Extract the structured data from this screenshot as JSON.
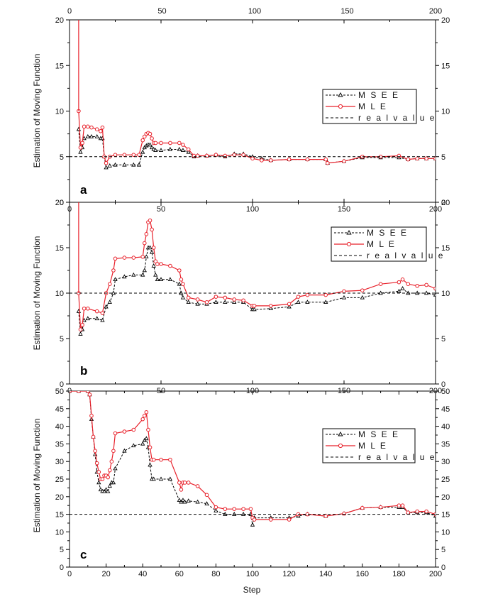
{
  "figure": {
    "x_axis_label": "Step",
    "y_axis_label": "Estimation of Moving Function",
    "x_ticks_top": [
      "0",
      "50",
      "100",
      "150",
      "200"
    ]
  },
  "colors": {
    "msee": "#000000",
    "mle": "#e8202a",
    "real": "#000000"
  },
  "chart_data": [
    {
      "type": "line",
      "panel_label": "a",
      "xlabel": "",
      "ylabel": "Estimation of Moving Function",
      "xlim": [
        0,
        200
      ],
      "ylim": [
        0,
        20
      ],
      "y_ticks": [
        "0",
        "5",
        "10",
        "15",
        "20"
      ],
      "y_ticks_right": [
        "0",
        "5",
        "10",
        "15",
        "20"
      ],
      "x_ticks": [
        "0",
        "50",
        "100",
        "150",
        "200"
      ],
      "legend_position": "right",
      "legend": [
        "M S E E",
        "M L E",
        "r e a l  v a l u e"
      ],
      "series": [
        {
          "name": "M S E E",
          "style": "dash-dot-triangle",
          "x": [
            5,
            6,
            7,
            8,
            10,
            12,
            15,
            17,
            18,
            19,
            20,
            22,
            25,
            30,
            35,
            38,
            40,
            41,
            42,
            43,
            44,
            45,
            46,
            47,
            50,
            55,
            60,
            62,
            65,
            68,
            70,
            75,
            80,
            85,
            90,
            95,
            100,
            105,
            110,
            120,
            130,
            140,
            141,
            150,
            160,
            170,
            180,
            185,
            190,
            195,
            200
          ],
          "y": [
            8.0,
            5.5,
            6.0,
            7.0,
            7.2,
            7.2,
            7.2,
            7.0,
            7.0,
            5.0,
            3.8,
            4.0,
            4.1,
            4.1,
            4.1,
            4.1,
            5.5,
            6.0,
            6.2,
            6.3,
            6.3,
            6.0,
            5.8,
            5.7,
            5.7,
            5.8,
            5.8,
            5.7,
            5.5,
            5.0,
            5.1,
            5.1,
            5.2,
            5.0,
            5.3,
            5.3,
            5.0,
            4.8,
            4.6,
            4.7,
            4.7,
            4.7,
            4.3,
            4.5,
            4.9,
            4.9,
            4.9,
            4.7,
            4.8,
            4.8,
            4.8
          ]
        },
        {
          "name": "M L E",
          "style": "solid-circle",
          "x": [
            5,
            6,
            7,
            8,
            10,
            12,
            15,
            17,
            18,
            19,
            20,
            22,
            25,
            30,
            35,
            38,
            40,
            41,
            42,
            43,
            44,
            45,
            46,
            47,
            50,
            55,
            60,
            62,
            65,
            68,
            70,
            75,
            80,
            85,
            90,
            95,
            100,
            105,
            110,
            120,
            130,
            140,
            141,
            150,
            160,
            170,
            180,
            185,
            190,
            195,
            200
          ],
          "y": [
            10.0,
            6.0,
            6.5,
            8.3,
            8.3,
            8.2,
            8.0,
            7.8,
            8.2,
            5.0,
            4.3,
            5.0,
            5.2,
            5.2,
            5.2,
            5.2,
            6.8,
            7.2,
            7.5,
            7.6,
            7.5,
            7.0,
            6.5,
            6.5,
            6.5,
            6.5,
            6.5,
            6.3,
            5.8,
            5.1,
            5.1,
            5.1,
            5.2,
            5.1,
            5.2,
            5.2,
            4.8,
            4.6,
            4.6,
            4.7,
            4.7,
            4.7,
            4.3,
            4.5,
            5.0,
            5.0,
            5.1,
            4.7,
            4.8,
            4.8,
            4.8
          ]
        },
        {
          "name": "r e a l  v a l u e",
          "style": "dashed",
          "x": [
            0,
            200
          ],
          "y": [
            5,
            5
          ]
        }
      ]
    },
    {
      "type": "line",
      "panel_label": "b",
      "xlabel": "",
      "ylabel": "Estimation of Moving Function",
      "xlim": [
        0,
        200
      ],
      "ylim": [
        0,
        20
      ],
      "y_ticks": [
        "0",
        "5",
        "10",
        "15",
        "20"
      ],
      "y_ticks_right": [
        "0",
        "5",
        "10",
        "15",
        "20"
      ],
      "x_ticks": [
        "0",
        "50",
        "100",
        "150",
        "200"
      ],
      "legend_position": "top-right",
      "legend": [
        "M S E E",
        "M L E",
        "r e a l  v a l u e"
      ],
      "series": [
        {
          "name": "M S E E",
          "style": "dash-dot-triangle",
          "x": [
            5,
            6,
            7,
            8,
            10,
            15,
            18,
            20,
            22,
            24,
            25,
            30,
            35,
            40,
            41,
            42,
            43,
            44,
            45,
            46,
            47,
            48,
            50,
            55,
            60,
            61,
            62,
            65,
            70,
            75,
            80,
            85,
            90,
            95,
            100,
            101,
            110,
            120,
            125,
            130,
            140,
            150,
            160,
            170,
            180,
            182,
            185,
            190,
            195,
            200
          ],
          "y": [
            8.0,
            5.5,
            6.0,
            7.0,
            7.2,
            7.2,
            7.0,
            8.5,
            9.0,
            10.0,
            11.5,
            11.8,
            12.0,
            12.0,
            12.5,
            14.0,
            15.0,
            15.0,
            14.5,
            13.0,
            12.0,
            11.5,
            11.5,
            11.5,
            11.0,
            10.0,
            9.5,
            9.0,
            8.8,
            8.8,
            9.0,
            9.0,
            9.0,
            9.0,
            8.2,
            8.2,
            8.3,
            8.5,
            9.0,
            9.0,
            9.0,
            9.5,
            9.5,
            10.0,
            10.2,
            10.5,
            10.0,
            10.0,
            10.0,
            9.8
          ]
        },
        {
          "name": "M L E",
          "style": "solid-circle",
          "x": [
            5,
            6,
            7,
            8,
            10,
            15,
            18,
            20,
            22,
            24,
            25,
            30,
            35,
            40,
            41,
            42,
            43,
            44,
            45,
            46,
            47,
            48,
            50,
            55,
            60,
            61,
            62,
            65,
            70,
            75,
            80,
            85,
            90,
            95,
            100,
            101,
            110,
            120,
            125,
            130,
            140,
            150,
            160,
            170,
            180,
            182,
            185,
            190,
            195,
            200
          ],
          "y": [
            10.0,
            6.0,
            6.5,
            8.3,
            8.3,
            8.0,
            7.8,
            10.0,
            11.0,
            12.5,
            13.8,
            13.9,
            13.9,
            14.0,
            15.5,
            16.5,
            17.8,
            18.0,
            17.0,
            15.0,
            13.5,
            13.2,
            13.2,
            13.0,
            12.5,
            11.5,
            11.0,
            9.5,
            9.3,
            9.0,
            9.6,
            9.5,
            9.3,
            9.2,
            8.6,
            8.6,
            8.6,
            8.8,
            9.6,
            9.8,
            9.8,
            10.2,
            10.3,
            11.0,
            11.2,
            11.5,
            11.0,
            10.8,
            10.9,
            10.5
          ]
        },
        {
          "name": "r e a l  v a l u e",
          "style": "dashed",
          "x": [
            0,
            200
          ],
          "y": [
            10,
            10
          ]
        }
      ]
    },
    {
      "type": "line",
      "panel_label": "c",
      "xlabel": "Step",
      "ylabel": "Estimation of Moving Function",
      "xlim": [
        0,
        200
      ],
      "ylim": [
        0,
        50
      ],
      "y_ticks": [
        "0",
        "5",
        "10",
        "15",
        "20",
        "25",
        "30",
        "35",
        "40",
        "45",
        "50"
      ],
      "y_ticks_right": [
        "0",
        "5",
        "10",
        "15",
        "20",
        "25",
        "30",
        "35",
        "40",
        "45",
        "50"
      ],
      "x_ticks": [
        "0",
        "20",
        "40",
        "60",
        "80",
        "100",
        "120",
        "140",
        "160",
        "180",
        "200"
      ],
      "legend_position": "right",
      "legend": [
        "M S E E",
        "M L E",
        "r e a l  v a l u e"
      ],
      "series": [
        {
          "name": "M S E E",
          "style": "dash-dot-triangle",
          "x": [
            0,
            5,
            10,
            11,
            12,
            13,
            14,
            15,
            16,
            17,
            18,
            19,
            20,
            21,
            22,
            23,
            24,
            25,
            30,
            35,
            40,
            41,
            42,
            43,
            44,
            45,
            46,
            50,
            55,
            60,
            61,
            62,
            63,
            65,
            70,
            75,
            80,
            85,
            90,
            95,
            99,
            100,
            101,
            110,
            120,
            125,
            130,
            140,
            150,
            160,
            170,
            180,
            182,
            185,
            190,
            195,
            200
          ],
          "y": [
            50,
            50,
            50,
            49,
            42,
            37,
            32,
            27,
            24,
            22,
            21.5,
            21.5,
            22,
            21.5,
            23,
            24,
            24,
            28,
            33,
            34.5,
            35,
            36,
            36.5,
            34,
            29,
            25,
            25,
            25,
            25,
            19,
            18.5,
            19,
            18.5,
            18.8,
            18.5,
            18,
            16,
            15,
            15,
            15,
            15,
            12,
            14,
            14,
            14,
            14.5,
            15,
            14.5,
            15.2,
            16.8,
            17,
            17,
            17,
            15.5,
            15.5,
            15.5,
            14.5
          ]
        },
        {
          "name": "M L E",
          "style": "solid-circle",
          "x": [
            0,
            5,
            10,
            11,
            12,
            13,
            14,
            15,
            16,
            17,
            18,
            19,
            20,
            21,
            22,
            23,
            24,
            25,
            30,
            35,
            40,
            41,
            42,
            43,
            44,
            45,
            46,
            50,
            55,
            60,
            61,
            62,
            63,
            65,
            70,
            75,
            80,
            85,
            90,
            95,
            99,
            100,
            101,
            110,
            120,
            125,
            130,
            140,
            150,
            160,
            170,
            180,
            182,
            185,
            190,
            195,
            200
          ],
          "y": [
            50,
            50,
            50,
            49,
            43,
            37,
            33,
            29.5,
            27,
            25,
            25,
            26,
            26,
            25.5,
            27.5,
            30,
            33,
            38,
            38.5,
            39,
            42,
            43,
            44,
            39,
            34,
            30.5,
            30.5,
            30.5,
            30.5,
            24,
            22,
            24,
            24,
            24,
            23,
            20.5,
            17,
            16.5,
            16.5,
            16.5,
            16.5,
            14,
            13.5,
            13.5,
            13.5,
            15,
            15,
            14.5,
            15.2,
            16.8,
            17,
            17.5,
            17.5,
            15.5,
            15.8,
            15.8,
            15
          ]
        },
        {
          "name": "r e a l  v a l u e",
          "style": "dashed",
          "x": [
            0,
            200
          ],
          "y": [
            15,
            15
          ]
        }
      ]
    }
  ]
}
